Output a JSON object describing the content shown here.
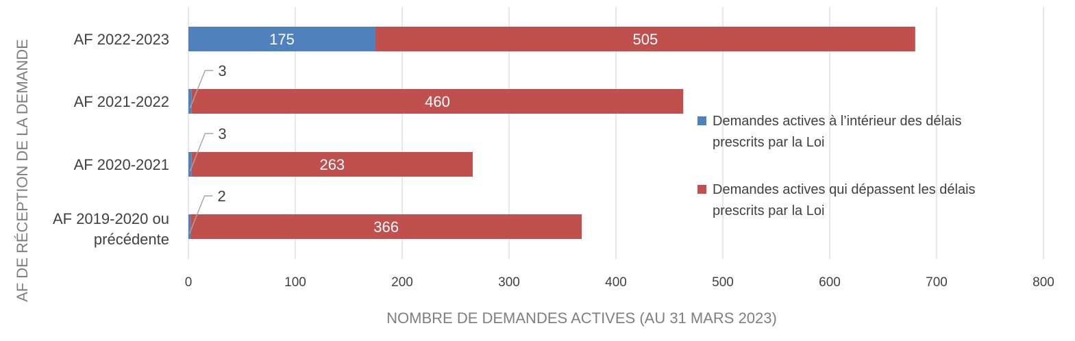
{
  "chart_data": {
    "type": "bar",
    "orientation": "horizontal",
    "stacked": true,
    "categories": [
      "AF 2022-2023",
      "AF 2021-2022",
      "AF 2020-2021",
      "AF 2019-2020 ou précédente"
    ],
    "series": [
      {
        "name": "Demandes actives à l’intérieur des délais prescrits par la Loi",
        "values": [
          175,
          3,
          3,
          2
        ],
        "color": "#4f81bd"
      },
      {
        "name": "Demandes actives qui dépassent les délais prescrits par la Loi",
        "values": [
          505,
          460,
          263,
          366
        ],
        "color": "#c0504d"
      }
    ],
    "xlabel": "NOMBRE DE DEMANDES ACTIVES (AU 31 MARS 2023)",
    "ylabel": "AF DE RÉCEPTION DE LA DEMANDE",
    "xlim": [
      0,
      800
    ],
    "xticks": [
      0,
      100,
      200,
      300,
      400,
      500,
      600,
      700,
      800
    ],
    "grid": true,
    "legend_position": "right"
  }
}
